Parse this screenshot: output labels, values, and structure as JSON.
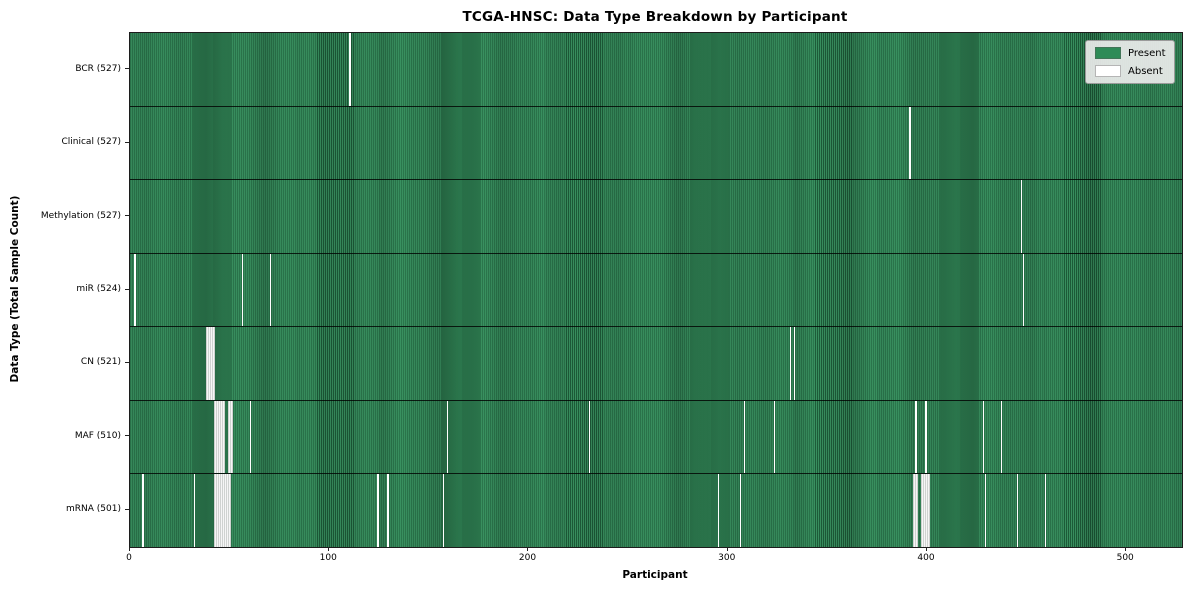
{
  "title": "TCGA-HNSC: Data Type Breakdown by Participant",
  "xlabel": "Participant",
  "ylabel": "Data Type (Total Sample Count)",
  "colors": {
    "present": "#2e8b57",
    "absent": "#ffffff"
  },
  "legend": [
    {
      "label": "Present",
      "color": "#2e8b57"
    },
    {
      "label": "Absent",
      "color": "#ffffff"
    }
  ],
  "chart_data": {
    "type": "heatmap",
    "title": "TCGA-HNSC: Data Type Breakdown by Participant",
    "xlabel": "Participant",
    "ylabel": "Data Type (Total Sample Count)",
    "x_ticks": [
      0,
      100,
      200,
      300,
      400,
      500
    ],
    "x_range": [
      0,
      528
    ],
    "n_participants": 528,
    "legend_position": "upper right",
    "rows": [
      {
        "name": "BCR",
        "label": "BCR (527)",
        "present_count": 527,
        "absent_participants": [
          110
        ]
      },
      {
        "name": "Clinical",
        "label": "Clinical (527)",
        "present_count": 527,
        "absent_participants": [
          391
        ]
      },
      {
        "name": "Methylation",
        "label": "Methylation (527)",
        "present_count": 527,
        "absent_participants": [
          447
        ]
      },
      {
        "name": "miR",
        "label": "miR (524)",
        "present_count": 524,
        "absent_participants": [
          2,
          56,
          70,
          448
        ]
      },
      {
        "name": "CN",
        "label": "CN (521)",
        "present_count": 521,
        "absent_participants": [
          38,
          39,
          40,
          41,
          42,
          331,
          333
        ]
      },
      {
        "name": "MAF",
        "label": "MAF (510)",
        "present_count": 510,
        "absent_participants": [
          42,
          43,
          44,
          45,
          46,
          47,
          49,
          50,
          51,
          60,
          159,
          230,
          308,
          323,
          394,
          399,
          428,
          437
        ]
      },
      {
        "name": "mRNA",
        "label": "mRNA (501)",
        "present_count": 501,
        "absent_participants": [
          6,
          32,
          42,
          43,
          44,
          45,
          46,
          47,
          48,
          49,
          50,
          124,
          129,
          157,
          295,
          306,
          393,
          394,
          395,
          397,
          398,
          399,
          400,
          401,
          429,
          445,
          459
        ]
      }
    ]
  }
}
